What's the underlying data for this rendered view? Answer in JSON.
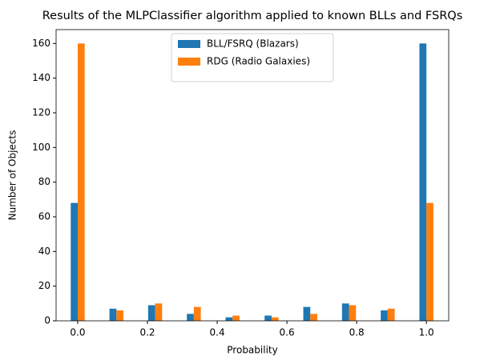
{
  "chart_data": {
    "type": "bar",
    "title": "Results of the MLPClassifier algorithm applied to known BLLs and FSRQs",
    "xlabel": "Probability",
    "ylabel": "Number of Objects",
    "x": [
      0,
      0.111,
      0.222,
      0.333,
      0.444,
      0.556,
      0.667,
      0.778,
      0.889,
      1.0
    ],
    "series": [
      {
        "name": "BLL/FSRQ (Blazars)",
        "color": "#1f77b4",
        "values": [
          68,
          7,
          9,
          4,
          2,
          3,
          8,
          10,
          6,
          160
        ]
      },
      {
        "name": "RDG (Radio Galaxies)",
        "color": "#ff7f0e",
        "values": [
          160,
          6,
          10,
          8,
          3,
          2,
          4,
          9,
          7,
          68
        ]
      }
    ],
    "xlim": [
      -0.062,
      1.064
    ],
    "xticks": [
      {
        "value": 0,
        "label": "0.0"
      },
      0.2,
      0.4,
      0.6,
      0.8,
      {
        "value": 1,
        "label": "1.0"
      }
    ],
    "ylim": [
      0,
      168
    ],
    "yticks": [
      0,
      20,
      40,
      60,
      80,
      100,
      120,
      140,
      160
    ],
    "legend": "upper center"
  }
}
